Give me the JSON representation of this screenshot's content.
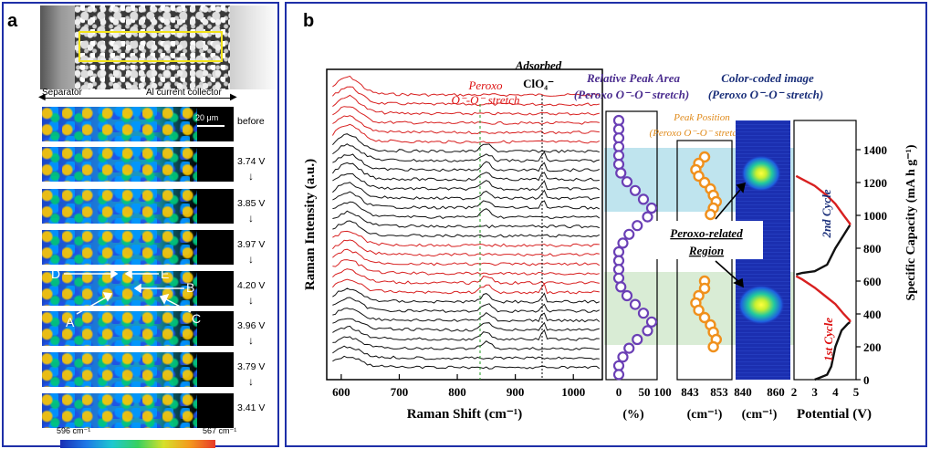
{
  "panel_a": {
    "label": "a",
    "separator_label": "Separator",
    "collector_label": "Al current collector",
    "scale_bar": "20 μm",
    "steps": [
      {
        "voltage": "before",
        "arrow": false
      },
      {
        "voltage": "3.74 V",
        "arrow": true
      },
      {
        "voltage": "3.85 V",
        "arrow": true
      },
      {
        "voltage": "3.97 V",
        "arrow": true
      },
      {
        "voltage": "4.20 V",
        "arrow": true
      },
      {
        "voltage": "3.96 V",
        "arrow": true
      },
      {
        "voltage": "3.79 V",
        "arrow": true
      },
      {
        "voltage": "3.41 V",
        "arrow": false
      }
    ],
    "point_labels": [
      "D",
      "E",
      "B",
      "A",
      "C"
    ],
    "colorbar_left": "596 cm⁻¹",
    "colorbar_right": "567 cm⁻¹"
  },
  "panel_b": {
    "label": "b",
    "y_axis_left": "Raman Intensity (a.u.)",
    "x_axis_main": "Raman Shift (cm⁻¹)",
    "peroxo_label_1": "Peroxo",
    "peroxo_label_2": "O⁻-O⁻ stretch",
    "adsorbed_label_1": "Adsorbed",
    "adsorbed_label_2": "ClO₄⁻",
    "rel_peak_title_1": "Relative Peak Area",
    "rel_peak_title_2": "(Peroxo O⁻-O⁻ stretch)",
    "peak_pos_title_1": "Peak Position",
    "peak_pos_title_2": "(Peroxo O⁻-O⁻ stretch)",
    "color_img_title_1": "Color-coded image",
    "color_img_title_2": "(Peroxo O⁻-O⁻ stretch)",
    "region_label_1": "Peroxo-related",
    "region_label_2": "Region",
    "cycle_2": "2nd Cycle",
    "cycle_1": "1st Cycle",
    "right_axis_title": "Specific Capacity (mA h g⁻¹)",
    "potential_label": "Potential (V)",
    "rel_unit": "(%)",
    "pos_unit": "(cm⁻¹)",
    "img_unit": "(cm⁻¹)"
  },
  "chart_data": [
    {
      "type": "line",
      "title": "",
      "xlabel": "Raman Shift (cm⁻¹)",
      "ylabel": "Raman Intensity (a.u.)",
      "xlim": [
        575,
        1050
      ],
      "x_ticks": [
        600,
        700,
        800,
        900,
        1000
      ],
      "n_spectra": 30,
      "annotations": [
        "Peroxo O⁻-O⁻ stretch",
        "Adsorbed ClO₄⁻"
      ],
      "peak_positions": [
        850,
        948
      ]
    },
    {
      "type": "scatter",
      "xlabel": "(%)",
      "x_ticks": [
        0,
        50,
        100
      ],
      "x": [
        0,
        0,
        0,
        0,
        0,
        0,
        5,
        20,
        40,
        60,
        80,
        70,
        45,
        25,
        10,
        0,
        0,
        0,
        0,
        5,
        20,
        40,
        60,
        80,
        70,
        45,
        25,
        10,
        0,
        0
      ]
    },
    {
      "type": "scatter",
      "xlabel": "(cm⁻¹)",
      "x_ticks": [
        843,
        853
      ],
      "x": [
        848,
        846,
        845,
        846,
        848,
        850,
        851,
        852,
        851,
        850,
        848,
        848,
        846,
        845,
        846,
        848,
        850,
        851,
        852,
        851
      ]
    },
    {
      "type": "line",
      "xlabel": "Potential (V)",
      "ylabel": "Specific Capacity (mA h g⁻¹)",
      "xlim": [
        2,
        5
      ],
      "ylim": [
        0,
        1500
      ],
      "x_ticks": [
        2,
        3,
        4,
        5
      ],
      "y_ticks": [
        0,
        200,
        400,
        600,
        800,
        1000,
        1200,
        1400
      ],
      "series": [
        {
          "name": "1st Cycle",
          "x": [
            3.0,
            3.2,
            3.6,
            3.8,
            4.0,
            4.3,
            4.6,
            4.7,
            4.7,
            4.4,
            4.0,
            3.6,
            3.0,
            2.4,
            2.1
          ],
          "y": [
            0,
            10,
            30,
            80,
            200,
            300,
            340,
            350,
            360,
            400,
            460,
            500,
            560,
            610,
            630
          ]
        },
        {
          "name": "2nd Cycle",
          "x": [
            2.1,
            2.4,
            3.0,
            3.6,
            4.0,
            4.4,
            4.7,
            4.7,
            4.4,
            4.0,
            3.6,
            3.0,
            2.4,
            2.1
          ],
          "y": [
            640,
            650,
            660,
            700,
            800,
            880,
            940,
            950,
            1000,
            1070,
            1120,
            1180,
            1220,
            1240
          ]
        }
      ]
    }
  ]
}
